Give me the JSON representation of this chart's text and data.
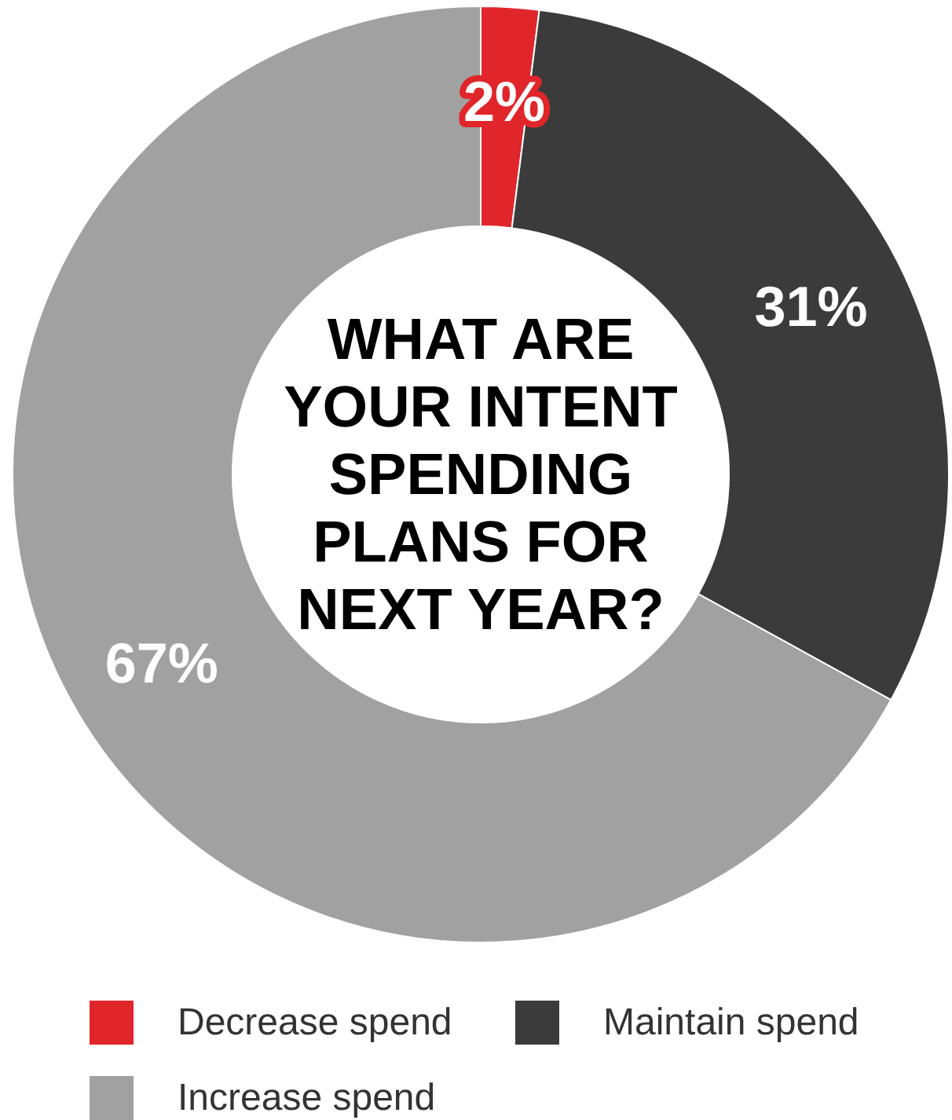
{
  "chart_data": {
    "type": "donut",
    "title": "WHAT ARE YOUR INTENT SPENDING PLANS FOR NEXT YEAR?",
    "categories": [
      "Decrease spend",
      "Maintain spend",
      "Increase spend"
    ],
    "values": [
      2,
      31,
      67
    ],
    "colors": [
      "#e0262b",
      "#3b3b3b",
      "#a1a1a1"
    ],
    "value_labels": [
      "2%",
      "31%",
      "67%"
    ],
    "legend": "bottom"
  }
}
